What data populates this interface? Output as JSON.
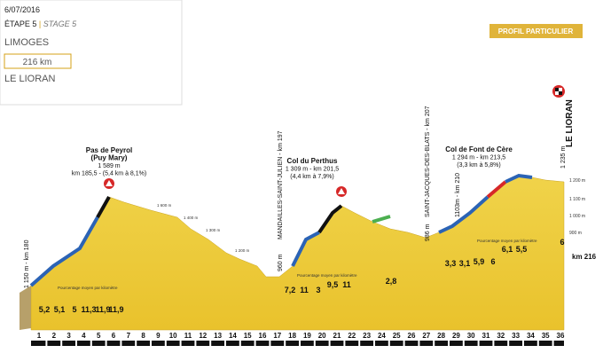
{
  "header": {
    "date": "6/07/2016",
    "stage": "ÉTAPE 5",
    "separator": "|",
    "stage_en": "STAGE 5",
    "start": "LIMOGES",
    "distance": "216 km",
    "finish": "LE LIORAN"
  },
  "badge": "PROFIL PARTICULIER",
  "climbs": [
    {
      "name": "Pas de Peyrol",
      "subname": "(Puy Mary)",
      "altitude": "1 589 m",
      "detail": "km 185,5 - (5,4 km à 8,1%)"
    },
    {
      "name": "Col du Perthus",
      "altitude": "1 309 m - km 201,5",
      "detail": "(4,4 km à 7,9%)"
    },
    {
      "name": "Col de Font de Cère",
      "altitude": "1 294 m - km 213,5",
      "detail": "(3,3 km à 5,8%)"
    }
  ],
  "places": [
    {
      "label": "1 150 m - km 180"
    },
    {
      "altitude": "960 m",
      "label": "MANDAILLES-SAINT-JULIEN - km 197"
    },
    {
      "altitude": "986 m",
      "label": "SAINT-JACQUES-DES-BLATS - km 207"
    },
    {
      "label": "1103m - km 210"
    },
    {
      "altitude": "1 235 m",
      "label": "LE LIORAN"
    }
  ],
  "altitude_labels": [
    "1 600 m",
    "1 400 m",
    "1 300 m",
    "1 200 m"
  ],
  "scale_labels": [
    "1 200 m",
    "1 100 m",
    "1 000 m",
    "900 m"
  ],
  "gradients": [
    "5,2",
    "5,1",
    "5",
    "11,3",
    "11,9",
    "11,9",
    "7,2",
    "11",
    "3",
    "9,5",
    "11",
    "2,8",
    "3,3",
    "3,1",
    "5,9",
    "6",
    "6,1",
    "5,5",
    "6"
  ],
  "gradient_note": [
    "Pourcentage moyen par kilomètre",
    "Pourcentage moyen par kilomètre",
    "Pourcentage moyen par kilomètre"
  ],
  "km_markers": [
    1,
    2,
    3,
    4,
    5,
    6,
    7,
    8,
    9,
    10,
    11,
    12,
    13,
    14,
    15,
    16,
    17,
    18,
    19,
    20,
    21,
    22,
    23,
    24,
    25,
    26,
    27,
    28,
    29,
    30,
    31,
    32,
    33,
    34,
    35,
    36
  ],
  "finish_km": "km 216"
}
